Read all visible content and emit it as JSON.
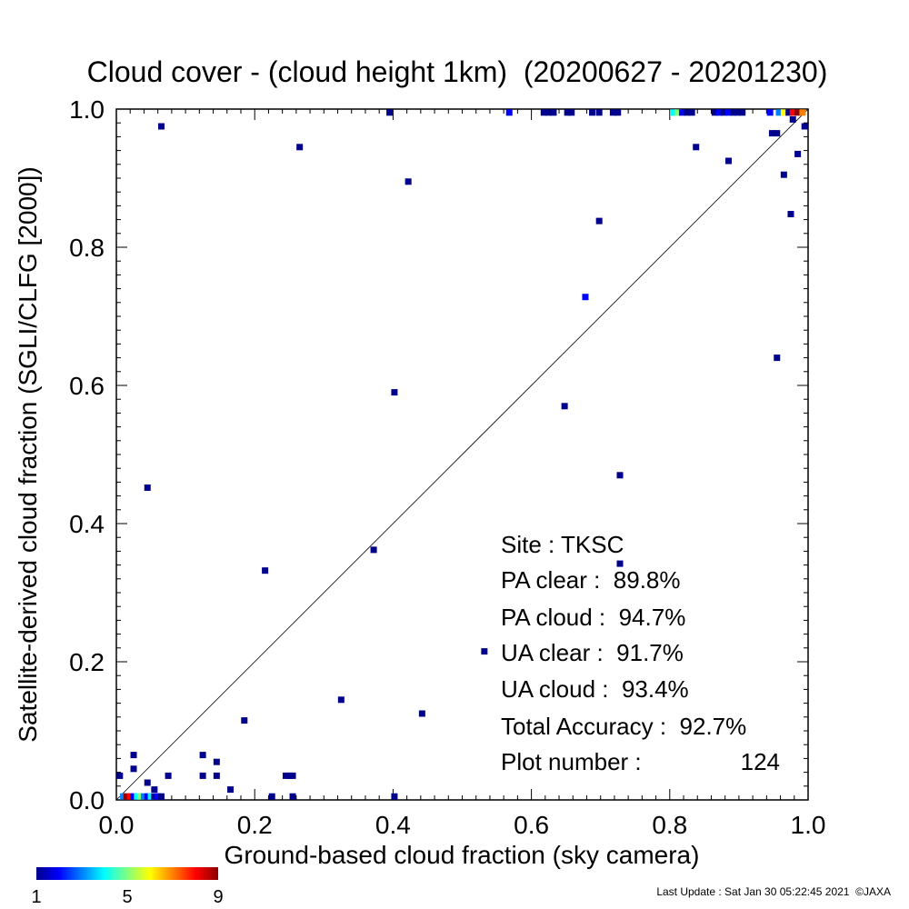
{
  "chart_data": {
    "type": "heatmap",
    "title": "Cloud cover - (cloud height 1km)  (20200627 - 20201230)",
    "xlabel": "Ground-based cloud fraction (sky camera)",
    "ylabel": "Satellite-derived cloud fraction (SGLI/CLFG [2000])",
    "xlim": [
      0,
      1
    ],
    "ylim": [
      0,
      1
    ],
    "xticks": [
      "0.0",
      "0.2",
      "0.4",
      "0.6",
      "0.8",
      "1.0"
    ],
    "yticks": [
      "0.0",
      "0.2",
      "0.4",
      "0.6",
      "0.8",
      "1.0"
    ],
    "reference_line": "y = x",
    "grid": false,
    "colorbar": {
      "min": 1,
      "max": 9,
      "tick_labels": [
        "1",
        "5",
        "9"
      ],
      "colors": [
        "#00008c",
        "#0000ff",
        "#0080ff",
        "#00ffff",
        "#80ff80",
        "#ffff00",
        "#ff8000",
        "#ff0000",
        "#8c0000"
      ]
    },
    "points": [
      {
        "x": 0.005,
        "y": 0.035,
        "count": 1
      },
      {
        "x": 0.01,
        "y": 0.005,
        "count": 3
      },
      {
        "x": 0.015,
        "y": 0.005,
        "count": 9
      },
      {
        "x": 0.02,
        "y": 0.005,
        "count": 8
      },
      {
        "x": 0.025,
        "y": 0.005,
        "count": 2
      },
      {
        "x": 0.03,
        "y": 0.005,
        "count": 4
      },
      {
        "x": 0.035,
        "y": 0.005,
        "count": 5
      },
      {
        "x": 0.04,
        "y": 0.005,
        "count": 3
      },
      {
        "x": 0.045,
        "y": 0.005,
        "count": 2
      },
      {
        "x": 0.05,
        "y": 0.005,
        "count": 4
      },
      {
        "x": 0.055,
        "y": 0.005,
        "count": 1
      },
      {
        "x": 0.06,
        "y": 0.005,
        "count": 2
      },
      {
        "x": 0.065,
        "y": 0.005,
        "count": 1
      },
      {
        "x": 0.025,
        "y": 0.045,
        "count": 1
      },
      {
        "x": 0.025,
        "y": 0.065,
        "count": 1
      },
      {
        "x": 0.045,
        "y": 0.025,
        "count": 1
      },
      {
        "x": 0.055,
        "y": 0.015,
        "count": 1
      },
      {
        "x": 0.075,
        "y": 0.035,
        "count": 1
      },
      {
        "x": 0.125,
        "y": 0.065,
        "count": 1
      },
      {
        "x": 0.125,
        "y": 0.035,
        "count": 1
      },
      {
        "x": 0.145,
        "y": 0.055,
        "count": 1
      },
      {
        "x": 0.145,
        "y": 0.035,
        "count": 1
      },
      {
        "x": 0.165,
        "y": 0.015,
        "count": 1
      },
      {
        "x": 0.185,
        "y": 0.115,
        "count": 1
      },
      {
        "x": 0.225,
        "y": 0.005,
        "count": 1
      },
      {
        "x": 0.245,
        "y": 0.035,
        "count": 1
      },
      {
        "x": 0.25,
        "y": 0.035,
        "count": 1
      },
      {
        "x": 0.255,
        "y": 0.035,
        "count": 1
      },
      {
        "x": 0.255,
        "y": 0.005,
        "count": 1
      },
      {
        "x": 0.215,
        "y": 0.332,
        "count": 1
      },
      {
        "x": 0.265,
        "y": 0.945,
        "count": 1
      },
      {
        "x": 0.045,
        "y": 0.452,
        "count": 1
      },
      {
        "x": 0.065,
        "y": 0.975,
        "count": 1
      },
      {
        "x": 0.325,
        "y": 0.145,
        "count": 1
      },
      {
        "x": 0.372,
        "y": 0.362,
        "count": 1
      },
      {
        "x": 0.395,
        "y": 0.995,
        "count": 1
      },
      {
        "x": 0.402,
        "y": 0.59,
        "count": 1
      },
      {
        "x": 0.402,
        "y": 0.005,
        "count": 1
      },
      {
        "x": 0.422,
        "y": 0.895,
        "count": 1
      },
      {
        "x": 0.442,
        "y": 0.125,
        "count": 1
      },
      {
        "x": 0.532,
        "y": 0.215,
        "count": 1
      },
      {
        "x": 0.568,
        "y": 0.995,
        "count": 2
      },
      {
        "x": 0.618,
        "y": 0.995,
        "count": 1
      },
      {
        "x": 0.625,
        "y": 0.995,
        "count": 1
      },
      {
        "x": 0.632,
        "y": 0.995,
        "count": 1
      },
      {
        "x": 0.648,
        "y": 0.57,
        "count": 1
      },
      {
        "x": 0.652,
        "y": 0.995,
        "count": 1
      },
      {
        "x": 0.658,
        "y": 0.995,
        "count": 1
      },
      {
        "x": 0.678,
        "y": 0.728,
        "count": 2
      },
      {
        "x": 0.688,
        "y": 0.995,
        "count": 1
      },
      {
        "x": 0.698,
        "y": 0.995,
        "count": 1
      },
      {
        "x": 0.698,
        "y": 0.838,
        "count": 1
      },
      {
        "x": 0.718,
        "y": 0.995,
        "count": 1
      },
      {
        "x": 0.725,
        "y": 0.995,
        "count": 1
      },
      {
        "x": 0.728,
        "y": 0.47,
        "count": 1
      },
      {
        "x": 0.728,
        "y": 0.342,
        "count": 1
      },
      {
        "x": 0.805,
        "y": 0.995,
        "count": 4
      },
      {
        "x": 0.812,
        "y": 0.995,
        "count": 5
      },
      {
        "x": 0.818,
        "y": 0.995,
        "count": 2
      },
      {
        "x": 0.825,
        "y": 0.995,
        "count": 1
      },
      {
        "x": 0.832,
        "y": 0.995,
        "count": 1
      },
      {
        "x": 0.838,
        "y": 0.945,
        "count": 1
      },
      {
        "x": 0.865,
        "y": 0.995,
        "count": 1
      },
      {
        "x": 0.872,
        "y": 0.995,
        "count": 2
      },
      {
        "x": 0.878,
        "y": 0.995,
        "count": 1
      },
      {
        "x": 0.885,
        "y": 0.995,
        "count": 2
      },
      {
        "x": 0.885,
        "y": 0.925,
        "count": 1
      },
      {
        "x": 0.892,
        "y": 0.995,
        "count": 1
      },
      {
        "x": 0.898,
        "y": 0.995,
        "count": 1
      },
      {
        "x": 0.905,
        "y": 0.995,
        "count": 1
      },
      {
        "x": 0.945,
        "y": 0.995,
        "count": 2
      },
      {
        "x": 0.948,
        "y": 0.965,
        "count": 1
      },
      {
        "x": 0.955,
        "y": 0.965,
        "count": 1
      },
      {
        "x": 0.955,
        "y": 0.64,
        "count": 1
      },
      {
        "x": 0.958,
        "y": 0.995,
        "count": 3
      },
      {
        "x": 0.965,
        "y": 0.995,
        "count": 6
      },
      {
        "x": 0.965,
        "y": 0.905,
        "count": 1
      },
      {
        "x": 0.972,
        "y": 0.995,
        "count": 1
      },
      {
        "x": 0.975,
        "y": 0.848,
        "count": 1
      },
      {
        "x": 0.978,
        "y": 0.995,
        "count": 8
      },
      {
        "x": 0.978,
        "y": 0.985,
        "count": 1
      },
      {
        "x": 0.985,
        "y": 0.995,
        "count": 9
      },
      {
        "x": 0.985,
        "y": 0.935,
        "count": 1
      },
      {
        "x": 0.992,
        "y": 0.995,
        "count": 7
      },
      {
        "x": 0.995,
        "y": 0.975,
        "count": 1
      }
    ]
  },
  "stats": {
    "site": "Site : TKSC",
    "pa_clear": "PA clear :  89.8%",
    "pa_cloud": "PA cloud :  94.7%",
    "ua_clear": "UA clear :  91.7%",
    "ua_cloud": "UA cloud :  93.4%",
    "total_accuracy": "Total Accuracy :  92.7%",
    "plot_number_label": "Plot number :",
    "plot_number_value": "124"
  },
  "footer": {
    "last_update": "Last Update : Sat Jan 30 05:22:45 2021  ©JAXA"
  }
}
